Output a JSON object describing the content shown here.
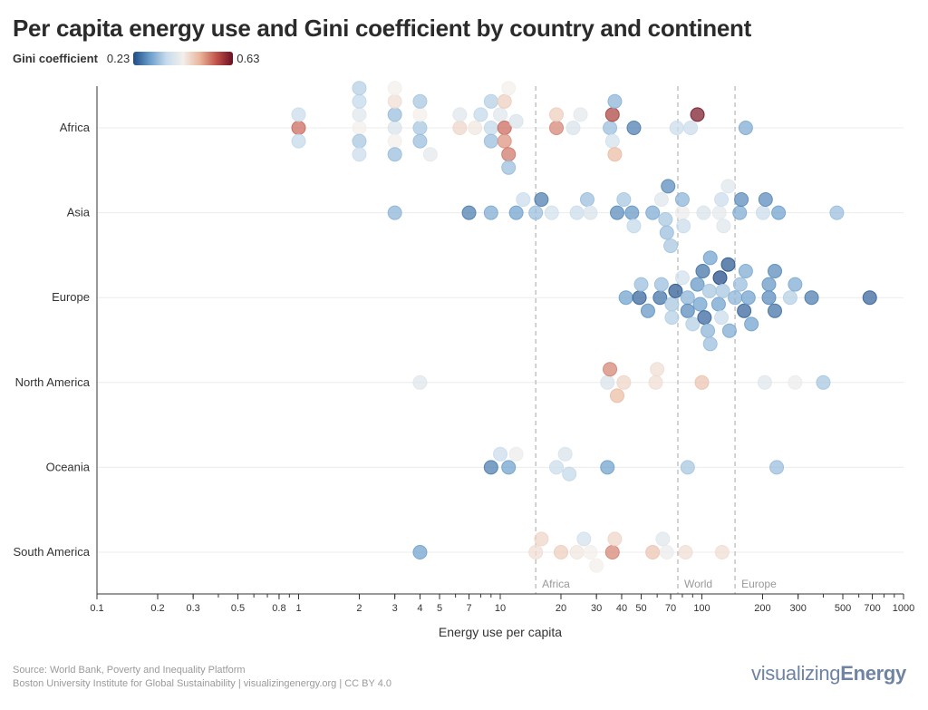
{
  "title": "Per capita energy use and Gini coefficient by country and continent",
  "legend": {
    "label": "Gini coefficient",
    "min": "0.23",
    "max": "0.63"
  },
  "footer": {
    "source": "Source: World Bank, Poverty and Inequality Platform",
    "credit": "Boston University Institute for Global Sustainability | visualizingenergy.org | CC BY 4.0"
  },
  "brand": {
    "light": "visualizing",
    "bold": "Energy"
  },
  "colors": {
    "scale": [
      "#1d4a85",
      "#6a9ecb",
      "#c7dbec",
      "#f2efeb",
      "#eab69c",
      "#c2534a",
      "#6b0f22"
    ],
    "refline": "#bbbbbb"
  },
  "chart_data": {
    "type": "scatter",
    "subtype": "beeswarm",
    "xlabel": "Energy use per capita",
    "xscale": "log",
    "xlim": [
      0.1,
      1000
    ],
    "xticks": [
      0.1,
      0.2,
      0.3,
      0.5,
      0.8,
      1,
      2,
      3,
      4,
      5,
      7,
      10,
      20,
      30,
      40,
      50,
      70,
      100,
      200,
      300,
      500,
      700,
      1000
    ],
    "xtick_labels": [
      "0.1",
      "0.2",
      "0.3",
      "0.5",
      "0.8",
      "1",
      "2",
      "3",
      "4",
      "5",
      "7",
      "10",
      "20",
      "30",
      "40",
      "50",
      "70",
      "100",
      "200",
      "300",
      "500",
      "700",
      "1000"
    ],
    "color_range": [
      0.23,
      0.63
    ],
    "categories": [
      "Africa",
      "Asia",
      "Europe",
      "North America",
      "Oceania",
      "South America"
    ],
    "reference_lines": [
      {
        "label": "Africa",
        "x": 15
      },
      {
        "label": "World",
        "x": 76
      },
      {
        "label": "Europe",
        "x": 146
      }
    ],
    "series": [
      {
        "name": "Africa",
        "points": [
          [
            1,
            0.55
          ],
          [
            1,
            0.37
          ],
          [
            1,
            0.36
          ],
          [
            2,
            0.43
          ],
          [
            2,
            0.4
          ],
          [
            2,
            0.34
          ],
          [
            2,
            0.36
          ],
          [
            2,
            0.37
          ],
          [
            2,
            0.35
          ],
          [
            3,
            0.39
          ],
          [
            3,
            0.33
          ],
          [
            3,
            0.43
          ],
          [
            3,
            0.45
          ],
          [
            3,
            0.33
          ],
          [
            3,
            0.43
          ],
          [
            4,
            0.34
          ],
          [
            4,
            0.43
          ],
          [
            4,
            0.33
          ],
          [
            4,
            0.34
          ],
          [
            4.5,
            0.41
          ],
          [
            6.3,
            0.46
          ],
          [
            6.3,
            0.4
          ],
          [
            7.5,
            0.44
          ],
          [
            8,
            0.36
          ],
          [
            9,
            0.36
          ],
          [
            9,
            0.33
          ],
          [
            9,
            0.35
          ],
          [
            10,
            0.4
          ],
          [
            10.5,
            0.55
          ],
          [
            10.5,
            0.52
          ],
          [
            10.5,
            0.47
          ],
          [
            11,
            0.54
          ],
          [
            11,
            0.43
          ],
          [
            11,
            0.33
          ],
          [
            12,
            0.39
          ],
          [
            19,
            0.53
          ],
          [
            19,
            0.47
          ],
          [
            23,
            0.39
          ],
          [
            25,
            0.41
          ],
          [
            36,
            0.58
          ],
          [
            37,
            0.32
          ],
          [
            37,
            0.49
          ],
          [
            36,
            0.38
          ],
          [
            35,
            0.33
          ],
          [
            46,
            0.27
          ],
          [
            75,
            0.37
          ],
          [
            88,
            0.37
          ],
          [
            95,
            0.62
          ],
          [
            165,
            0.31
          ]
        ]
      },
      {
        "name": "Asia",
        "points": [
          [
            3,
            0.32
          ],
          [
            7,
            0.27
          ],
          [
            9,
            0.31
          ],
          [
            12,
            0.3
          ],
          [
            13,
            0.37
          ],
          [
            15,
            0.33
          ],
          [
            16,
            0.27
          ],
          [
            18,
            0.38
          ],
          [
            24,
            0.37
          ],
          [
            27,
            0.33
          ],
          [
            28,
            0.39
          ],
          [
            38,
            0.28
          ],
          [
            41,
            0.34
          ],
          [
            45,
            0.29
          ],
          [
            46,
            0.36
          ],
          [
            57,
            0.31
          ],
          [
            66,
            0.34
          ],
          [
            68,
            0.28
          ],
          [
            67,
            0.33
          ],
          [
            70,
            0.34
          ],
          [
            80,
            0.42
          ],
          [
            80,
            0.32
          ],
          [
            81,
            0.37
          ],
          [
            63,
            0.4
          ],
          [
            102,
            0.39
          ],
          [
            122,
            0.41
          ],
          [
            125,
            0.37
          ],
          [
            128,
            0.4
          ],
          [
            135,
            0.4
          ],
          [
            154,
            0.31
          ],
          [
            157,
            0.28
          ],
          [
            201,
            0.37
          ],
          [
            207,
            0.28
          ],
          [
            240,
            0.3
          ],
          [
            467,
            0.33
          ]
        ]
      },
      {
        "name": "Europe",
        "points": [
          [
            42,
            0.3
          ],
          [
            49,
            0.25
          ],
          [
            50,
            0.33
          ],
          [
            54,
            0.29
          ],
          [
            62,
            0.26
          ],
          [
            63,
            0.33
          ],
          [
            71,
            0.34
          ],
          [
            71,
            0.35
          ],
          [
            74,
            0.24
          ],
          [
            80,
            0.38
          ],
          [
            85,
            0.32
          ],
          [
            85,
            0.28
          ],
          [
            90,
            0.35
          ],
          [
            95,
            0.29
          ],
          [
            98,
            0.3
          ],
          [
            101,
            0.26
          ],
          [
            103,
            0.25
          ],
          [
            107,
            0.32
          ],
          [
            109,
            0.34
          ],
          [
            110,
            0.3
          ],
          [
            110,
            0.33
          ],
          [
            121,
            0.3
          ],
          [
            123,
            0.22
          ],
          [
            125,
            0.37
          ],
          [
            127,
            0.34
          ],
          [
            135,
            0.24
          ],
          [
            137,
            0.31
          ],
          [
            146,
            0.32
          ],
          [
            155,
            0.33
          ],
          [
            162,
            0.25
          ],
          [
            165,
            0.31
          ],
          [
            170,
            0.3
          ],
          [
            176,
            0.3
          ],
          [
            215,
            0.28
          ],
          [
            215,
            0.29
          ],
          [
            230,
            0.26
          ],
          [
            230,
            0.28
          ],
          [
            274,
            0.35
          ],
          [
            290,
            0.31
          ],
          [
            350,
            0.27
          ],
          [
            680,
            0.25
          ]
        ]
      },
      {
        "name": "North America",
        "points": [
          [
            4,
            0.4
          ],
          [
            34,
            0.39
          ],
          [
            35,
            0.53
          ],
          [
            38,
            0.49
          ],
          [
            41,
            0.46
          ],
          [
            59,
            0.45
          ],
          [
            60,
            0.45
          ],
          [
            100,
            0.48
          ],
          [
            205,
            0.4
          ],
          [
            290,
            0.42
          ],
          [
            400,
            0.34
          ]
        ]
      },
      {
        "name": "Oceania",
        "points": [
          [
            9,
            0.27
          ],
          [
            10,
            0.37
          ],
          [
            11,
            0.3
          ],
          [
            12,
            0.42
          ],
          [
            19,
            0.37
          ],
          [
            21,
            0.39
          ],
          [
            22,
            0.36
          ],
          [
            34,
            0.3
          ],
          [
            85,
            0.34
          ],
          [
            235,
            0.33
          ]
        ]
      },
      {
        "name": "South America",
        "points": [
          [
            4,
            0.3
          ],
          [
            15,
            0.45
          ],
          [
            16,
            0.46
          ],
          [
            20,
            0.47
          ],
          [
            24,
            0.44
          ],
          [
            26,
            0.38
          ],
          [
            28,
            0.43
          ],
          [
            30,
            0.43
          ],
          [
            36,
            0.53
          ],
          [
            37,
            0.46
          ],
          [
            57,
            0.48
          ],
          [
            64,
            0.4
          ],
          [
            67,
            0.42
          ],
          [
            83,
            0.45
          ],
          [
            126,
            0.45
          ]
        ]
      }
    ]
  }
}
